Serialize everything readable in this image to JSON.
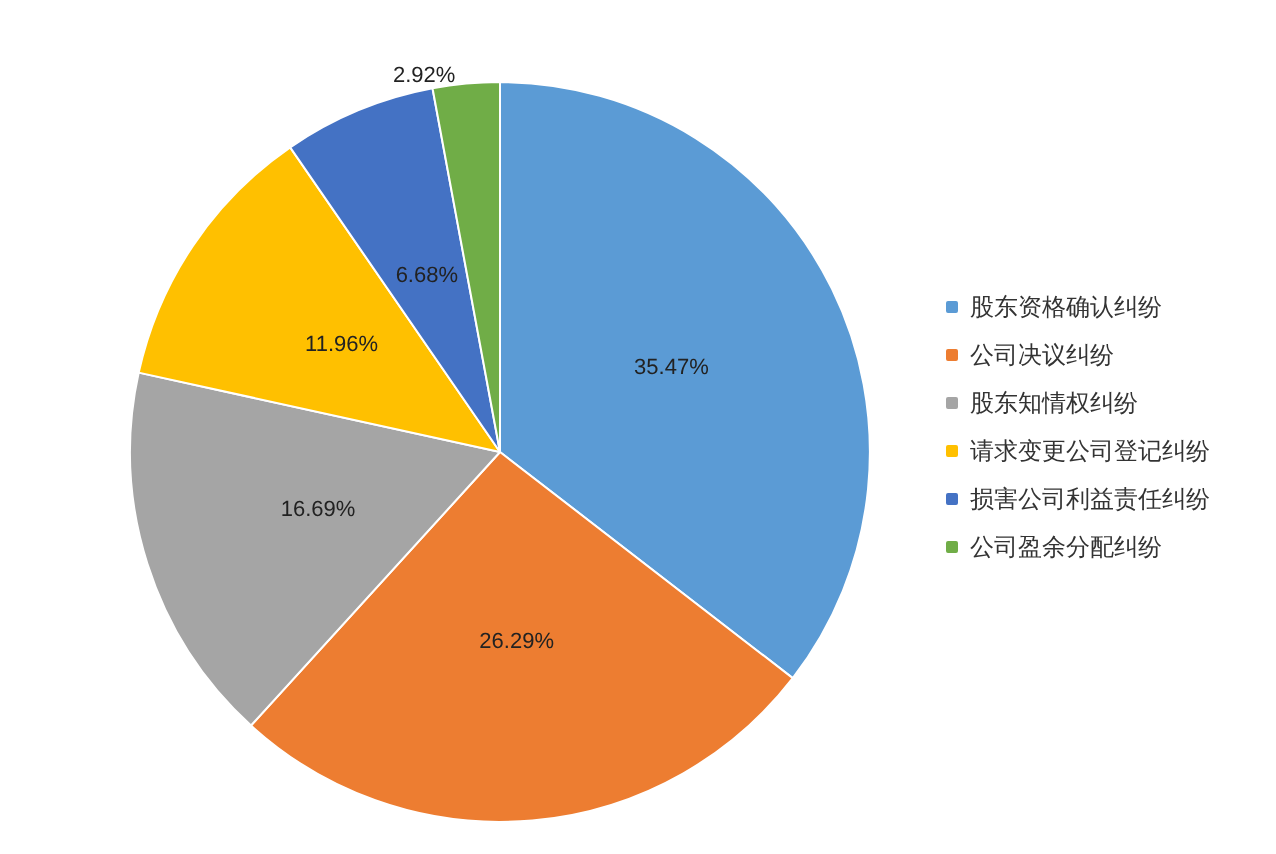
{
  "chart_data": {
    "type": "pie",
    "categories": [
      "股东资格确认纠纷",
      "公司决议纠纷",
      "股东知情权纠纷",
      "请求变更公司登记纠纷",
      "损害公司利益责任纠纷",
      "公司盈余分配纠纷"
    ],
    "values": [
      35.47,
      26.29,
      16.69,
      11.96,
      6.68,
      2.92
    ],
    "value_labels": [
      "35.47%",
      "26.29%",
      "16.69%",
      "11.96%",
      "6.68%",
      "2.92%"
    ],
    "colors": [
      "#5b9bd5",
      "#ed7d31",
      "#a5a5a5",
      "#ffc000",
      "#4472c4",
      "#70ad47"
    ],
    "legend": "right"
  }
}
